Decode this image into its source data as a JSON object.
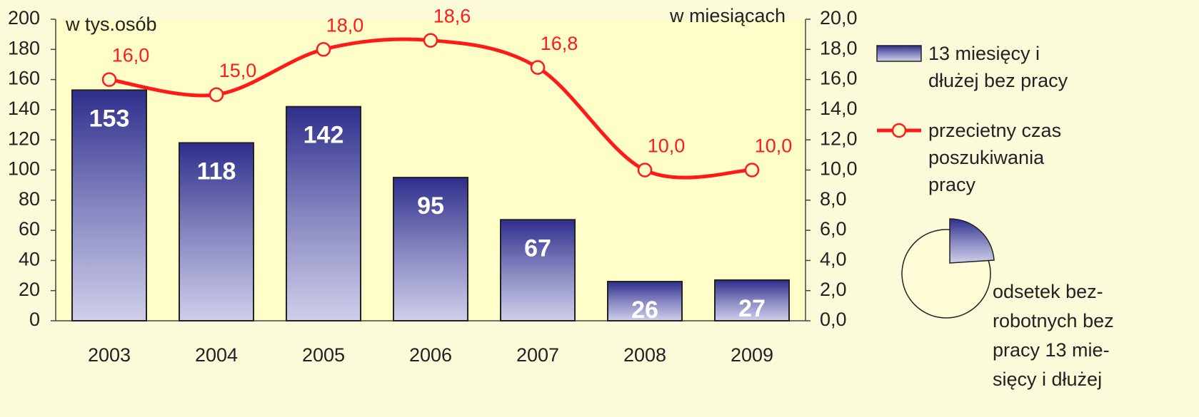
{
  "chart_data": {
    "type": "bar",
    "y_axis_label": "w tys.osób",
    "y2_axis_label": "w miesiącach",
    "categories": [
      "2003",
      "2004",
      "2005",
      "2006",
      "2007",
      "2008",
      "2009"
    ],
    "series": [
      {
        "name": "13 miesięcy i dłużej  bez pracy",
        "type": "bar",
        "color": "#2e2e8c",
        "values": [
          153,
          118,
          142,
          95,
          67,
          26,
          27
        ]
      },
      {
        "name": "przecietny czas poszukiwania pracy",
        "type": "line",
        "axis": "y2",
        "color": "#ff1a1a",
        "values": [
          16.0,
          15.0,
          18.0,
          18.6,
          16.8,
          10.0,
          10.0
        ],
        "value_labels": [
          "16,0",
          "15,0",
          "18,0",
          "18,6",
          "16,8",
          "10,0",
          "10,0"
        ]
      }
    ],
    "ylim": [
      0,
      200
    ],
    "yticks": [
      0,
      20,
      40,
      60,
      80,
      100,
      120,
      140,
      160,
      180,
      200
    ],
    "y2lim": [
      0,
      20
    ],
    "y2ticks": [
      {
        "value": 0,
        "label": "0,0"
      },
      {
        "value": 2,
        "label": "2,0"
      },
      {
        "value": 4,
        "label": "4,0"
      },
      {
        "value": 6,
        "label": "6,0"
      },
      {
        "value": 8,
        "label": "8,0"
      },
      {
        "value": 10,
        "label": "10,0"
      },
      {
        "value": 12,
        "label": "12,0"
      },
      {
        "value": 14,
        "label": "14,0"
      },
      {
        "value": 16,
        "label": "16,0"
      },
      {
        "value": 18,
        "label": "18,0"
      },
      {
        "value": 20,
        "label": "20,0"
      }
    ],
    "annotation": [
      "odsetek bez-",
      "robotnych bez",
      "pracy 13 mie-",
      "sięcy i dłużej"
    ]
  }
}
